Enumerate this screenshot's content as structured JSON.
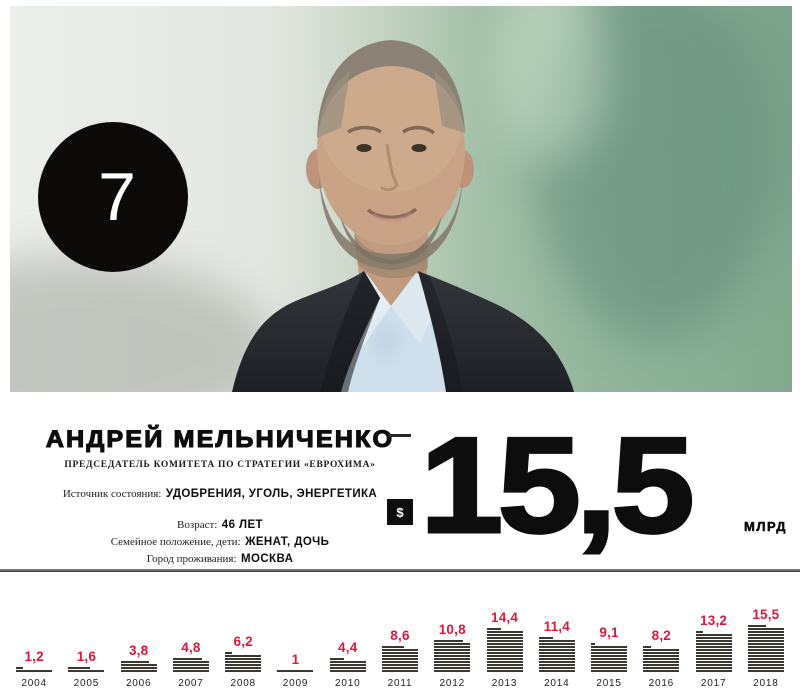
{
  "rank_badge": {
    "rank": "7"
  },
  "profile": {
    "name": "АНДРЕЙ МЕЛЬНИЧЕНКО",
    "title": "ПРЕДСЕДАТЕЛЬ КОМИТЕТА ПО СТРАТЕГИИ «ЕВРОХИМА»",
    "facts": [
      {
        "label": "Источник состояния:",
        "value": "УДОБРЕНИЯ, УГОЛЬ, ЭНЕРГЕТИКА"
      },
      {
        "label": "Возраст:",
        "value": "46 ЛЕТ"
      },
      {
        "label": "Семейное положение, дети:",
        "value": "ЖЕНАТ, ДОЧЬ"
      },
      {
        "label": "Город проживания:",
        "value": "МОСКВА"
      }
    ]
  },
  "net_worth": {
    "currency_symbol": "$",
    "amount": "15,5",
    "unit": "МЛРД"
  },
  "chart_data": {
    "type": "bar",
    "categories": [
      "2004",
      "2005",
      "2006",
      "2007",
      "2008",
      "2009",
      "2010",
      "2011",
      "2012",
      "2013",
      "2014",
      "2015",
      "2016",
      "2017",
      "2018"
    ],
    "values": [
      1.2,
      1.6,
      3.8,
      4.8,
      6.2,
      1,
      4.4,
      8.6,
      10.8,
      14.4,
      11.4,
      9.1,
      8.2,
      13.2,
      15.5
    ],
    "value_labels": [
      "1,2",
      "1,6",
      "3,8",
      "4,8",
      "6,2",
      "1",
      "4,4",
      "8,6",
      "10,8",
      "14,4",
      "11,4",
      "9,1",
      "8,2",
      "13,2",
      "15,5"
    ],
    "label_color": "#e0173a",
    "bar_color": "#3a372f",
    "ylim": [
      0,
      16
    ],
    "grid": false,
    "legend": false
  },
  "colors": {
    "accent_red": "#e0173a",
    "badge_black": "#0c0a09",
    "divider_gray": "#3c3c3c"
  }
}
